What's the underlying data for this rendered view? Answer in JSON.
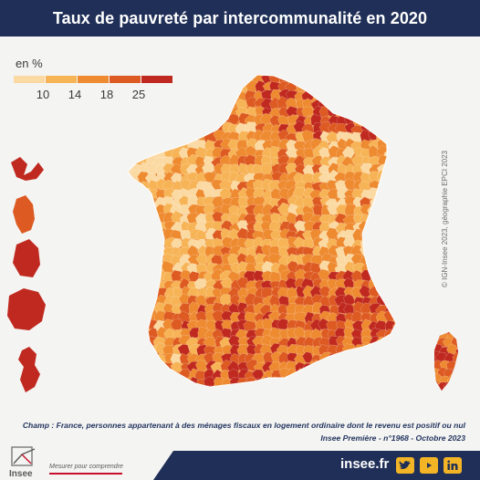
{
  "header": {
    "title": "Taux de pauvreté par intercommunalité en 2020"
  },
  "legend": {
    "unit": "en %",
    "colors": [
      "#fbd9a2",
      "#f7b456",
      "#ee8a30",
      "#dd5a22",
      "#c0291f"
    ],
    "ticks": [
      "10",
      "14",
      "18",
      "25"
    ]
  },
  "map": {
    "territories": [
      "France métropolitaine",
      "Guadeloupe",
      "Martinique",
      "Guyane",
      "La Réunion",
      "Mayotte",
      "Corse"
    ],
    "colors": {
      "very_low": "#fbd9a2",
      "low": "#f7b456",
      "medium": "#ee8a30",
      "high": "#dd5a22",
      "very_high": "#c0291f",
      "border": "#ffffff"
    }
  },
  "copyright": "© IGN-Insee 2023, géographie EPCI 2023",
  "notes": {
    "scope": "Champ : France, personnes appartenant à des ménages fiscaux en logement ordinaire dont le revenu est positif ou nul",
    "source": "Insee Première -  n°1968 - Octobre 2023"
  },
  "footer": {
    "logo_text": "Insee",
    "tagline": "Mesurer pour comprendre",
    "site": "insee.fr",
    "social_icons": [
      "twitter-icon",
      "youtube-icon",
      "linkedin-icon"
    ],
    "accent_color": "#1f2f57",
    "icon_color": "#f3b526"
  }
}
